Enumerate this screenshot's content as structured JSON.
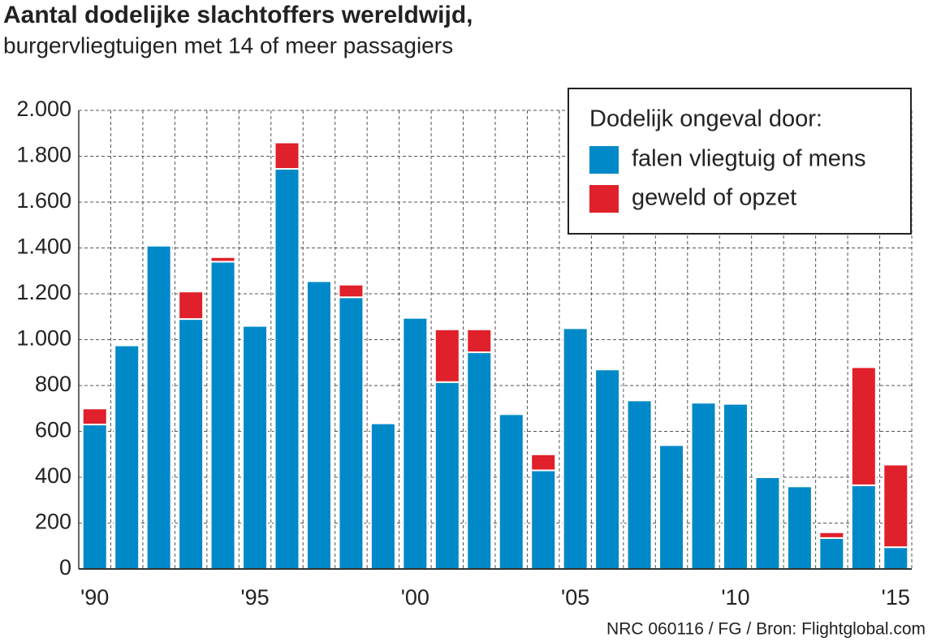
{
  "chart_data": {
    "type": "stacked_bar",
    "title": "Aantal dodelijke slachtoffers wereldwijd,",
    "subtitle": "burgervliegtuigen  met 14 of meer passagiers",
    "source": "NRC 060116 / FG / Bron: Flightglobal.com",
    "legend_title": "Dodelijk ongeval door:",
    "legend_position": "upper right",
    "grid": true,
    "categories": [
      "'90",
      null,
      null,
      null,
      null,
      "'95",
      null,
      null,
      null,
      null,
      "'00",
      null,
      null,
      null,
      null,
      "'05",
      null,
      null,
      null,
      null,
      "'10",
      null,
      null,
      null,
      null,
      "'15"
    ],
    "series": [
      {
        "name": "falen vliegtuig of mens",
        "color": "#0089c8",
        "values": [
          630,
          975,
          1410,
          1090,
          1340,
          1060,
          1745,
          1255,
          1185,
          635,
          1095,
          815,
          945,
          675,
          430,
          1050,
          870,
          735,
          540,
          725,
          720,
          400,
          360,
          135,
          365,
          95
        ]
      },
      {
        "name": "geweld of opzet",
        "color": "#e0202a",
        "values": [
          70,
          0,
          0,
          120,
          20,
          0,
          115,
          0,
          55,
          0,
          0,
          230,
          100,
          0,
          70,
          0,
          0,
          0,
          0,
          0,
          0,
          0,
          0,
          25,
          515,
          360
        ]
      }
    ],
    "ylim": [
      0,
      2000
    ],
    "yticks": [
      0,
      200,
      400,
      600,
      800,
      {
        "value": 1000,
        "label": "1.000"
      },
      {
        "value": 1200,
        "label": "1.200"
      },
      {
        "value": 1400,
        "label": "1.400"
      },
      {
        "value": 1600,
        "label": "1.600"
      },
      {
        "value": 1800,
        "label": "1.800"
      },
      {
        "value": 2000,
        "label": "2.000"
      }
    ]
  }
}
